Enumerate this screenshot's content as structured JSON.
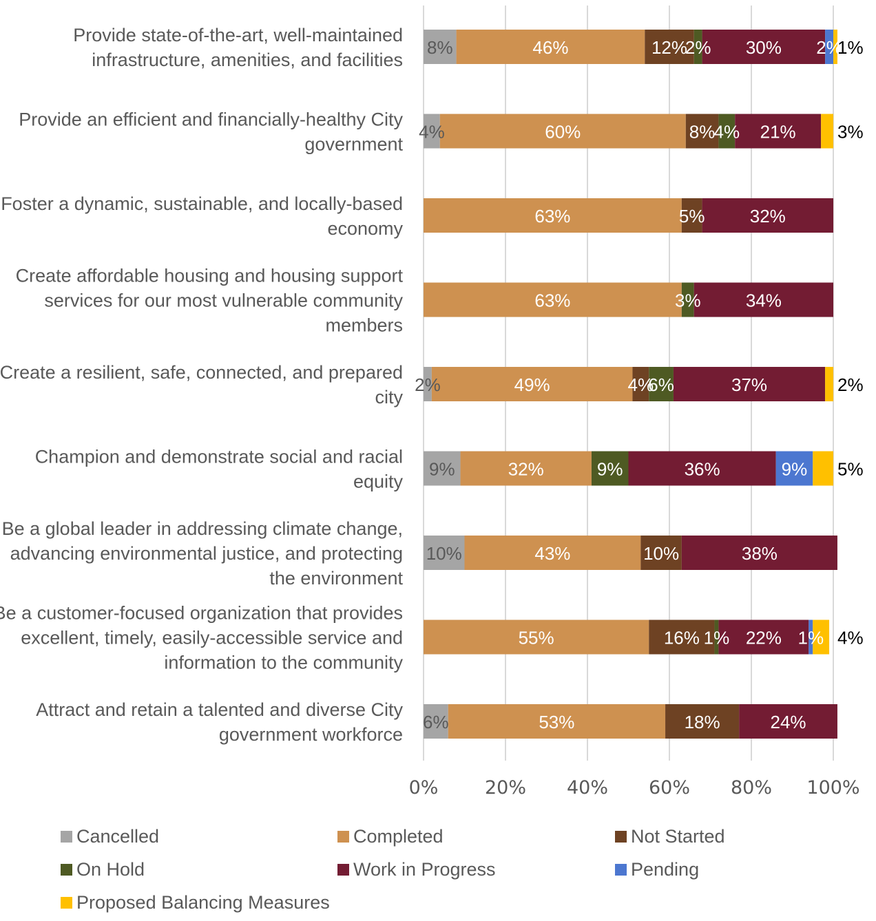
{
  "chart_data": {
    "type": "bar",
    "orientation": "horizontal",
    "stacked": "percent",
    "categories": [
      "Provide state-of-the-art, well-maintained infrastructure, amenities, and facilities",
      "Provide an efficient and financially-healthy City government",
      "Foster a dynamic, sustainable, and locally-based economy",
      "Create affordable housing and housing support services for our most vulnerable community members",
      "Create a resilient, safe, connected, and prepared city",
      "Champion and demonstrate social and racial equity",
      "Be a global leader in addressing climate change, advancing environmental justice, and protecting the environment",
      "Be a customer-focused organization that provides excellent, timely, easily-accessible service and information to the community",
      "Attract and retain a talented and diverse City government workforce"
    ],
    "category_lines": [
      [
        "Provide state-of-the-art, well-maintained",
        "infrastructure, amenities, and facilities"
      ],
      [
        "Provide an efficient and financially-healthy City",
        "government"
      ],
      [
        "Foster a dynamic, sustainable, and locally-based",
        "economy"
      ],
      [
        "Create affordable housing and housing support",
        "services for our most vulnerable community",
        "members"
      ],
      [
        "Create a resilient, safe, connected, and prepared",
        "city"
      ],
      [
        "Champion and demonstrate social and racial",
        "equity"
      ],
      [
        "Be a global leader in addressing climate change,",
        "advancing environmental justice, and protecting",
        "the environment"
      ],
      [
        "Be a customer-focused organization that provides",
        "excellent, timely, easily-accessible service and",
        "information to the community"
      ],
      [
        "Attract and retain a talented and diverse City",
        "government workforce"
      ]
    ],
    "series": [
      {
        "name": "Cancelled",
        "color": "#A5A5A5",
        "label_color": "#595959",
        "values": [
          8,
          4,
          0,
          0,
          2,
          9,
          10,
          0,
          6
        ]
      },
      {
        "name": "Completed",
        "color": "#CE9150",
        "label_color": "#ffffff",
        "values": [
          46,
          60,
          63,
          63,
          49,
          32,
          43,
          55,
          53
        ]
      },
      {
        "name": "Not Started",
        "color": "#6E4223",
        "label_color": "#ffffff",
        "values": [
          12,
          8,
          5,
          0,
          4,
          0,
          10,
          16,
          18
        ]
      },
      {
        "name": "On Hold",
        "color": "#4E5A23",
        "label_color": "#ffffff",
        "values": [
          2,
          4,
          0,
          3,
          6,
          9,
          0,
          1,
          0
        ]
      },
      {
        "name": "Work in Progress",
        "color": "#731C33",
        "label_color": "#ffffff",
        "values": [
          30,
          21,
          32,
          34,
          37,
          36,
          38,
          22,
          24
        ]
      },
      {
        "name": "Pending",
        "color": "#4C77D0",
        "label_color": "#ffffff",
        "values": [
          2,
          0,
          0,
          0,
          0,
          9,
          0,
          1,
          0
        ]
      },
      {
        "name": "Proposed Balancing Measures",
        "color": "#FFC000",
        "label_color": "#ffffff",
        "values": [
          1,
          3,
          0,
          0,
          2,
          5,
          0,
          4,
          0
        ]
      }
    ],
    "xlim": [
      0,
      100
    ],
    "xticks": [
      "0%",
      "20%",
      "40%",
      "60%",
      "80%",
      "100%"
    ],
    "grid": true,
    "legend_position": "bottom"
  }
}
